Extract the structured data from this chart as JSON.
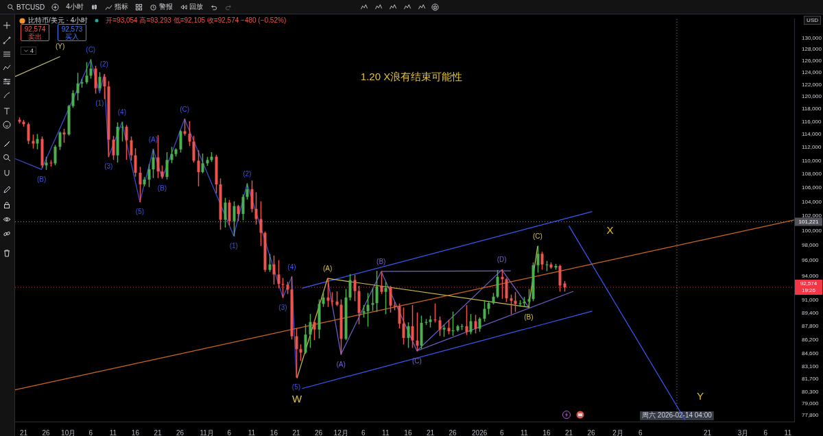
{
  "chart_data": {
    "type": "candlestick",
    "title": "1.20 X浪有结束可能性",
    "subtitle": "比特币/美元 · 4小时",
    "ylabel": "USD",
    "log": true,
    "xlim": [
      "2025-09-19T02:00",
      "2026-03-12T10:00"
    ],
    "ylim": [
      77100,
      133400
    ],
    "yticks": [
      {
        "value": 77800,
        "label": "77,800"
      },
      {
        "value": 79000,
        "label": "79,000"
      },
      {
        "value": 80300,
        "label": "80,300"
      },
      {
        "value": 81700,
        "label": "81,700"
      },
      {
        "value": 83100,
        "label": "83,100"
      },
      {
        "value": 84600,
        "label": "84,600"
      },
      {
        "value": 86200,
        "label": "86,200"
      },
      {
        "value": 87800,
        "label": "87,800"
      },
      {
        "value": 89400,
        "label": "89,400"
      },
      {
        "value": 91000,
        "label": "91,000"
      },
      {
        "value": 94000,
        "label": "94,000"
      },
      {
        "value": 96000,
        "label": "96,000"
      },
      {
        "value": 98000,
        "label": "98,000"
      },
      {
        "value": 100000,
        "label": "100,000"
      },
      {
        "value": 102000,
        "label": "102,000"
      },
      {
        "value": 104000,
        "label": "104,000"
      },
      {
        "value": 106000,
        "label": "106,000"
      },
      {
        "value": 108000,
        "label": "108,000"
      },
      {
        "value": 110000,
        "label": "110,000"
      },
      {
        "value": 112000,
        "label": "112,000"
      },
      {
        "value": 114000,
        "label": "114,000"
      },
      {
        "value": 116000,
        "label": "116,000"
      },
      {
        "value": 118000,
        "label": "118,000"
      },
      {
        "value": 120000,
        "label": "120,000"
      },
      {
        "value": 122000,
        "label": "122,000"
      },
      {
        "value": 124000,
        "label": "124,000"
      },
      {
        "value": 126000,
        "label": "126,000"
      },
      {
        "value": 128000,
        "label": "128,000"
      },
      {
        "value": 130000,
        "label": "130,000"
      }
    ],
    "xticks": [
      {
        "value": "2025-09-21",
        "label": "21"
      },
      {
        "value": "2025-09-26",
        "label": "26"
      },
      {
        "value": "2025-10-01",
        "label": "10月"
      },
      {
        "value": "2025-10-06",
        "label": "6"
      },
      {
        "value": "2025-10-11",
        "label": "11"
      },
      {
        "value": "2025-10-16",
        "label": "16"
      },
      {
        "value": "2025-10-21",
        "label": "21"
      },
      {
        "value": "2025-10-26",
        "label": "26"
      },
      {
        "value": "2025-11-01",
        "label": "11月"
      },
      {
        "value": "2025-11-06",
        "label": "6"
      },
      {
        "value": "2025-11-11",
        "label": "11"
      },
      {
        "value": "2025-11-16",
        "label": "16"
      },
      {
        "value": "2025-11-21",
        "label": "21"
      },
      {
        "value": "2025-11-26",
        "label": "26"
      },
      {
        "value": "2025-12-01",
        "label": "12月"
      },
      {
        "value": "2025-12-06",
        "label": "6"
      },
      {
        "value": "2025-12-11",
        "label": "11"
      },
      {
        "value": "2025-12-16",
        "label": "16"
      },
      {
        "value": "2025-12-21",
        "label": "21"
      },
      {
        "value": "2025-12-26",
        "label": "26"
      },
      {
        "value": "2026-01-01",
        "label": "2026"
      },
      {
        "value": "2026-01-06",
        "label": "6"
      },
      {
        "value": "2026-01-11",
        "label": "11"
      },
      {
        "value": "2026-01-16",
        "label": "16"
      },
      {
        "value": "2026-01-21",
        "label": "21"
      },
      {
        "value": "2026-01-26",
        "label": "26"
      },
      {
        "value": "2026-02-01",
        "label": "2月"
      },
      {
        "value": "2026-02-06",
        "label": "6"
      },
      {
        "value": "2026-02-21",
        "label": "21"
      },
      {
        "value": "2026-03-01",
        "label": "3月"
      },
      {
        "value": "2026-03-06",
        "label": "6"
      },
      {
        "value": "2026-03-11",
        "label": "11"
      }
    ],
    "x": [
      "2025-09-20",
      "2025-09-21",
      "2025-09-22",
      "2025-09-23",
      "2025-09-24",
      "2025-09-25",
      "2025-09-26",
      "2025-09-27",
      "2025-09-28",
      "2025-09-29",
      "2025-09-30",
      "2025-10-01",
      "2025-10-02",
      "2025-10-03",
      "2025-10-04",
      "2025-10-05",
      "2025-10-06",
      "2025-10-07",
      "2025-10-08",
      "2025-10-09",
      "2025-10-10",
      "2025-10-11",
      "2025-10-12",
      "2025-10-13",
      "2025-10-14",
      "2025-10-15",
      "2025-10-16",
      "2025-10-17",
      "2025-10-18",
      "2025-10-19",
      "2025-10-20",
      "2025-10-21",
      "2025-10-22",
      "2025-10-23",
      "2025-10-24",
      "2025-10-25",
      "2025-10-26",
      "2025-10-27",
      "2025-10-28",
      "2025-10-29",
      "2025-10-30",
      "2025-10-31",
      "2025-11-01",
      "2025-11-02",
      "2025-11-03",
      "2025-11-04",
      "2025-11-05",
      "2025-11-06",
      "2025-11-07",
      "2025-11-08",
      "2025-11-09",
      "2025-11-10",
      "2025-11-11",
      "2025-11-12",
      "2025-11-13",
      "2025-11-14",
      "2025-11-15",
      "2025-11-16",
      "2025-11-17",
      "2025-11-18",
      "2025-11-19",
      "2025-11-20",
      "2025-11-21",
      "2025-11-22",
      "2025-11-23",
      "2025-11-24",
      "2025-11-25",
      "2025-11-26",
      "2025-11-27",
      "2025-11-28",
      "2025-11-29",
      "2025-11-30",
      "2025-12-01",
      "2025-12-02",
      "2025-12-03",
      "2025-12-04",
      "2025-12-05",
      "2025-12-06",
      "2025-12-07",
      "2025-12-08",
      "2025-12-09",
      "2025-12-10",
      "2025-12-11",
      "2025-12-12",
      "2025-12-13",
      "2025-12-14",
      "2025-12-15",
      "2025-12-16",
      "2025-12-17",
      "2025-12-18",
      "2025-12-19",
      "2025-12-20",
      "2025-12-21",
      "2025-12-22",
      "2025-12-23",
      "2025-12-24",
      "2025-12-25",
      "2025-12-26",
      "2025-12-27",
      "2025-12-28",
      "2025-12-29",
      "2025-12-30",
      "2025-12-31",
      "2026-01-01",
      "2026-01-02",
      "2026-01-03",
      "2026-01-04",
      "2026-01-05",
      "2026-01-06",
      "2026-01-07",
      "2026-01-08",
      "2026-01-09",
      "2026-01-10",
      "2026-01-11",
      "2026-01-12",
      "2026-01-13",
      "2026-01-14",
      "2026-01-15",
      "2026-01-16",
      "2026-01-17",
      "2026-01-18",
      "2026-01-19",
      "2026-01-20"
    ],
    "ohlc": [
      [
        116300,
        116600,
        115800,
        116000
      ],
      [
        116000,
        116200,
        115300,
        115600
      ],
      [
        115600,
        115800,
        112600,
        113000
      ],
      [
        113000,
        113900,
        111900,
        112600
      ],
      [
        112600,
        114000,
        111800,
        113300
      ],
      [
        113300,
        113600,
        109000,
        109300
      ],
      [
        109300,
        110500,
        108700,
        109700
      ],
      [
        109700,
        110000,
        109200,
        109600
      ],
      [
        109600,
        112300,
        109400,
        112100
      ],
      [
        112100,
        114400,
        111700,
        114300
      ],
      [
        114300,
        114800,
        112800,
        114000
      ],
      [
        114000,
        118600,
        113900,
        118500
      ],
      [
        118500,
        121000,
        118300,
        120600
      ],
      [
        120600,
        123900,
        119500,
        122200
      ],
      [
        122200,
        122900,
        121600,
        122400
      ],
      [
        122400,
        125700,
        122200,
        123500
      ],
      [
        123500,
        126200,
        123100,
        124700
      ],
      [
        124700,
        125100,
        120600,
        121400
      ],
      [
        121400,
        124000,
        121100,
        123300
      ],
      [
        123300,
        123700,
        119700,
        121700
      ],
      [
        121700,
        122500,
        110600,
        113200
      ],
      [
        113200,
        113700,
        110200,
        110800
      ],
      [
        110800,
        115800,
        109800,
        115200
      ],
      [
        115200,
        115900,
        113000,
        115200
      ],
      [
        115200,
        115400,
        110200,
        113100
      ],
      [
        113100,
        113600,
        110100,
        110800
      ],
      [
        110800,
        111800,
        107700,
        108200
      ],
      [
        108200,
        109000,
        104000,
        106500
      ],
      [
        106500,
        107500,
        106300,
        107200
      ],
      [
        107200,
        109400,
        106200,
        108700
      ],
      [
        108700,
        111700,
        107500,
        110500
      ],
      [
        110500,
        113800,
        107500,
        108400
      ],
      [
        108400,
        109200,
        107400,
        107600
      ],
      [
        107600,
        111200,
        107300,
        110100
      ],
      [
        110100,
        112000,
        109700,
        111000
      ],
      [
        111000,
        111800,
        110700,
        111700
      ],
      [
        111700,
        114600,
        111300,
        114500
      ],
      [
        114500,
        116400,
        113900,
        114100
      ],
      [
        114100,
        116000,
        112300,
        112900
      ],
      [
        112900,
        113700,
        109800,
        110000
      ],
      [
        110000,
        111500,
        106300,
        108300
      ],
      [
        108300,
        111000,
        108200,
        109600
      ],
      [
        109600,
        110500,
        109300,
        110100
      ],
      [
        110100,
        111200,
        109900,
        110600
      ],
      [
        110600,
        110800,
        105300,
        106500
      ],
      [
        106500,
        107300,
        100200,
        101500
      ],
      [
        101500,
        104500,
        100500,
        103900
      ],
      [
        103900,
        104200,
        100800,
        101300
      ],
      [
        101300,
        104000,
        99300,
        103400
      ],
      [
        103400,
        103500,
        101400,
        102300
      ],
      [
        102300,
        105000,
        101500,
        104700
      ],
      [
        104700,
        106600,
        104400,
        105800
      ],
      [
        105800,
        107000,
        102600,
        103000
      ],
      [
        103000,
        105300,
        100900,
        101600
      ],
      [
        101600,
        104000,
        98000,
        99700
      ],
      [
        99700,
        99800,
        94600,
        94800
      ],
      [
        94800,
        96800,
        94600,
        95500
      ],
      [
        95500,
        96600,
        93000,
        94200
      ],
      [
        94200,
        96000,
        92500,
        93000
      ],
      [
        93000,
        93700,
        91300,
        92900
      ],
      [
        92900,
        93200,
        91800,
        92300
      ],
      [
        92300,
        93900,
        86300,
        86600
      ],
      [
        86600,
        87500,
        81900,
        85100
      ],
      [
        85100,
        85600,
        83800,
        84700
      ],
      [
        84700,
        88000,
        84600,
        86800
      ],
      [
        86800,
        89200,
        85300,
        88300
      ],
      [
        88300,
        88500,
        86200,
        87400
      ],
      [
        87400,
        91000,
        86400,
        90500
      ],
      [
        90500,
        91900,
        90200,
        91300
      ],
      [
        91300,
        93700,
        90200,
        90900
      ],
      [
        90900,
        91900,
        90300,
        90800
      ],
      [
        90800,
        92000,
        90300,
        90400
      ],
      [
        90400,
        91000,
        84500,
        86300
      ],
      [
        86300,
        92300,
        86200,
        91300
      ],
      [
        91300,
        94200,
        91000,
        93500
      ],
      [
        93500,
        94100,
        90900,
        92100
      ],
      [
        92100,
        92700,
        88100,
        89400
      ],
      [
        89400,
        90300,
        88900,
        89600
      ],
      [
        89600,
        91800,
        87800,
        90400
      ],
      [
        90400,
        92400,
        89700,
        90600
      ],
      [
        90600,
        94600,
        89600,
        92700
      ],
      [
        92700,
        94500,
        91800,
        92000
      ],
      [
        92000,
        93200,
        89300,
        92500
      ],
      [
        92500,
        92700,
        89500,
        90300
      ],
      [
        90300,
        90700,
        89800,
        90200
      ],
      [
        90200,
        90500,
        87600,
        88100
      ],
      [
        88100,
        90000,
        85700,
        86400
      ],
      [
        86400,
        88200,
        85300,
        87800
      ],
      [
        87800,
        90300,
        85300,
        86100
      ],
      [
        86100,
        89400,
        84900,
        85500
      ],
      [
        85500,
        89000,
        85200,
        88200
      ],
      [
        88200,
        88600,
        88000,
        88300
      ],
      [
        88300,
        89000,
        87700,
        88600
      ],
      [
        88600,
        90500,
        88300,
        88500
      ],
      [
        88500,
        88900,
        86700,
        87400
      ],
      [
        87400,
        87900,
        86600,
        87600
      ],
      [
        87600,
        88500,
        86900,
        87200
      ],
      [
        87200,
        89500,
        86700,
        87300
      ],
      [
        87300,
        87900,
        87200,
        87800
      ],
      [
        87800,
        88000,
        87400,
        87800
      ],
      [
        87800,
        90300,
        86800,
        87100
      ],
      [
        87100,
        89200,
        86900,
        88400
      ],
      [
        88400,
        89100,
        87000,
        87500
      ],
      [
        87500,
        88800,
        87200,
        88700
      ],
      [
        88700,
        90900,
        88400,
        89900
      ],
      [
        89900,
        90700,
        89300,
        90600
      ],
      [
        90600,
        91800,
        90500,
        91400
      ],
      [
        91400,
        94700,
        91300,
        93900
      ],
      [
        93900,
        94800,
        91200,
        93600
      ],
      [
        93600,
        93700,
        90800,
        91200
      ],
      [
        91200,
        91600,
        89300,
        90900
      ],
      [
        90900,
        91900,
        89600,
        90500
      ],
      [
        90500,
        90900,
        90200,
        90600
      ],
      [
        90600,
        91300,
        90200,
        90800
      ],
      [
        90800,
        92300,
        90100,
        91100
      ],
      [
        91100,
        95700,
        90900,
        95400
      ],
      [
        95400,
        97900,
        94500,
        96900
      ],
      [
        96900,
        97100,
        94900,
        95500
      ],
      [
        95500,
        95900,
        94700,
        95500
      ],
      [
        95500,
        95700,
        95000,
        95100
      ],
      [
        95100,
        95500,
        94900,
        95300
      ],
      [
        95300,
        95400,
        92100,
        92800
      ],
      [
        93054,
        93293,
        92105,
        92574
      ]
    ],
    "series": [
      {
        "type": "line",
        "color": "#d2691e",
        "x": [
          "2025-09-19T02:00",
          "2026-03-12T10:00"
        ],
        "values": [
          80510,
          101460
        ]
      },
      {
        "type": "line",
        "color": "#c9c27a",
        "x": [
          "2025-09-19T02:00",
          "2025-09-29T04:00"
        ],
        "values": [
          123350,
          126760
        ]
      },
      {
        "type": "line",
        "color": "#3f51d8",
        "x": [
          "2025-09-19T02:00",
          "2025-09-25",
          "2025-10-06",
          "2025-10-08",
          "2025-10-09",
          "2025-10-10",
          "2025-10-13",
          "2025-10-17",
          "2025-10-20",
          "2025-10-22",
          "2025-10-27",
          "2025-11-07",
          "2025-11-10",
          "2025-11-18",
          "2025-11-20",
          "2025-11-21"
        ],
        "values": [
          110300,
          108700,
          126200,
          120600,
          123700,
          110600,
          115900,
          104000,
          111700,
          107400,
          116400,
          99300,
          106600,
          91300,
          93900,
          81900
        ]
      },
      {
        "type": "line",
        "color": "#d4c24a",
        "x": [
          "2025-11-21T04:00",
          "2025-11-28",
          "2026-01-12",
          "2026-01-14"
        ],
        "values": [
          81800,
          93700,
          90100,
          97900
        ]
      },
      {
        "type": "line",
        "color": "#6f63d0",
        "x": [
          "2025-11-28",
          "2025-12-01",
          "2025-12-10",
          "2025-12-18",
          "2026-01-06",
          "2026-01-12"
        ],
        "values": [
          93700,
          84500,
          94600,
          84900,
          94800,
          90100
        ]
      },
      {
        "type": "line",
        "color": "#6f63d0",
        "x": [
          "2025-12-10",
          "2026-01-08"
        ],
        "values": [
          94600,
          94670
        ]
      },
      {
        "type": "line",
        "color": "#6f63d0",
        "x": [
          "2025-12-18",
          "2026-01-22"
        ],
        "values": [
          84900,
          92060
        ]
      },
      {
        "type": "line",
        "color": "#3a5bff",
        "x": [
          "2025-11-22T07:00",
          "2026-01-26T05:00"
        ],
        "values": [
          92470,
          102640
        ]
      },
      {
        "type": "line",
        "color": "#3a5bff",
        "x": [
          "2025-11-22T07:00",
          "2026-01-26T05:00"
        ],
        "values": [
          80650,
          89610
        ]
      },
      {
        "type": "line",
        "color": "#3a5bff",
        "x": [
          "2026-01-21",
          "2026-02-16"
        ],
        "values": [
          100660,
          77280
        ]
      }
    ],
    "ref_lines": [
      {
        "axis": "y",
        "value": 101221,
        "label": "101,221",
        "color": "#9598a1",
        "line_style": "dotted"
      },
      {
        "axis": "y",
        "value": 92574,
        "label": "92,574\n19:26",
        "color": "#f23645",
        "line_style": "dotted"
      },
      {
        "axis": "x",
        "value": "2026-02-14T04:00",
        "label": "周六 2026-02-14 04:00",
        "color": "#9598a1",
        "line_style": "dotted"
      }
    ],
    "annotations": [
      "BTCUSD",
      "4小时",
      "指标",
      "警报",
      "回放",
      "开=93,054 高=93,293 低=92,105 收=92,574 −480 (−0.52%)",
      "92,574\n卖出",
      "92,573\n买入",
      "4",
      "X",
      "Y",
      {
        "text": "(Y)",
        "x": "2025-09-29T04:00",
        "y": 126760
      },
      {
        "text": "(B)",
        "x": "2025-09-25",
        "y": 108700
      },
      {
        "text": "(C)",
        "x": "2025-10-06",
        "y": 126200
      },
      {
        "text": "(1)",
        "x": "2025-10-08",
        "y": 120600
      },
      {
        "text": "(2)",
        "x": "2025-10-09",
        "y": 123700
      },
      {
        "text": "(3)",
        "x": "2025-10-10",
        "y": 110600
      },
      {
        "text": "(4)",
        "x": "2025-10-13",
        "y": 115900
      },
      {
        "text": "(5)",
        "x": "2025-10-17",
        "y": 104000
      },
      {
        "text": "(A)",
        "x": "2025-10-20",
        "y": 111700
      },
      {
        "text": "(B)",
        "x": "2025-10-22",
        "y": 107400
      },
      {
        "text": "(C)",
        "x": "2025-10-27",
        "y": 116400
      },
      {
        "text": "(1)",
        "x": "2025-11-07",
        "y": 99300
      },
      {
        "text": "(2)",
        "x": "2025-11-10",
        "y": 106600
      },
      {
        "text": "(3)",
        "x": "2025-11-18",
        "y": 91300
      },
      {
        "text": "(4)",
        "x": "2025-11-20",
        "y": 93900
      },
      {
        "text": "(5)",
        "x": "2025-11-21",
        "y": 81900
      },
      {
        "text": "W",
        "x": "2025-11-21T04:00",
        "y": 81800
      },
      {
        "text": "(A)",
        "x": "2025-11-28",
        "y": 93700
      },
      {
        "text": "(B)",
        "x": "2026-01-12",
        "y": 90100
      },
      {
        "text": "(C)",
        "x": "2026-01-14",
        "y": 97900
      },
      {
        "text": "(A)",
        "x": "2025-12-01",
        "y": 84500
      },
      {
        "text": "(B)",
        "x": "2025-12-10",
        "y": 94600
      },
      {
        "text": "(C)",
        "x": "2025-12-18",
        "y": 84900
      },
      {
        "text": "(D)",
        "x": "2026-01-06",
        "y": 94800
      }
    ]
  }
}
